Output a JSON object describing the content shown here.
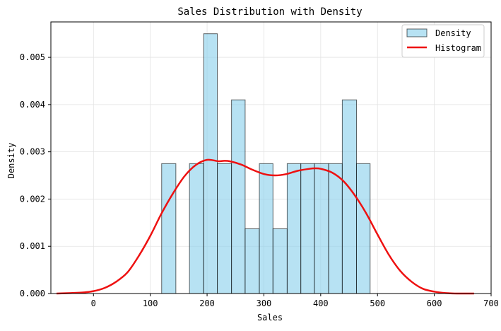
{
  "chart_data": {
    "type": "bar",
    "title": "Sales Distribution with Density",
    "xlabel": "Sales",
    "ylabel": "Density",
    "xlim": [
      -75,
      700
    ],
    "ylim": [
      0,
      0.00575
    ],
    "x_ticks": [
      0,
      100,
      200,
      300,
      400,
      500,
      600,
      700
    ],
    "y_ticks": [
      0.0,
      0.001,
      0.002,
      0.003,
      0.004,
      0.005
    ],
    "x_tick_labels": [
      "0",
      "100",
      "200",
      "300",
      "400",
      "500",
      "600",
      "700"
    ],
    "y_tick_labels": [
      "0.000",
      "0.001",
      "0.002",
      "0.003",
      "0.004",
      "0.005"
    ],
    "grid": true,
    "legend_position": "top-right",
    "legend": [
      {
        "label": "Density",
        "kind": "patch"
      },
      {
        "label": "Histogram",
        "kind": "line"
      }
    ],
    "histogram": {
      "bin_edges": [
        120,
        145,
        169,
        194,
        218,
        243,
        267,
        292,
        316,
        341,
        365,
        389,
        414,
        438,
        463,
        487
      ],
      "densities": [
        0.00275,
        0.0,
        0.00275,
        0.0055,
        0.00275,
        0.0041,
        0.00137,
        0.00275,
        0.00137,
        0.00275,
        0.00275,
        0.00275,
        0.00275,
        0.0041,
        0.00275
      ],
      "fill_color": "#87ceeb",
      "edge_color": "#000000"
    },
    "density_curve": {
      "color": "#ee1111",
      "x": [
        -65,
        -40,
        -20,
        0,
        20,
        40,
        60,
        80,
        100,
        120,
        140,
        160,
        180,
        200,
        220,
        230,
        240,
        260,
        280,
        300,
        320,
        340,
        360,
        380,
        390,
        400,
        420,
        440,
        460,
        480,
        500,
        520,
        540,
        560,
        580,
        600,
        620,
        640,
        670
      ],
      "y": [
        0.0,
        1e-05,
        2e-05,
        5e-05,
        0.00012,
        0.00025,
        0.00045,
        0.0008,
        0.00122,
        0.0017,
        0.00212,
        0.00248,
        0.00272,
        0.00283,
        0.0028,
        0.00281,
        0.0028,
        0.00273,
        0.00262,
        0.00253,
        0.0025,
        0.00253,
        0.0026,
        0.00264,
        0.00265,
        0.00264,
        0.00256,
        0.00238,
        0.00208,
        0.0017,
        0.00125,
        0.00082,
        0.00048,
        0.00025,
        0.0001,
        4e-05,
        1e-05,
        0.0,
        0.0
      ]
    }
  }
}
